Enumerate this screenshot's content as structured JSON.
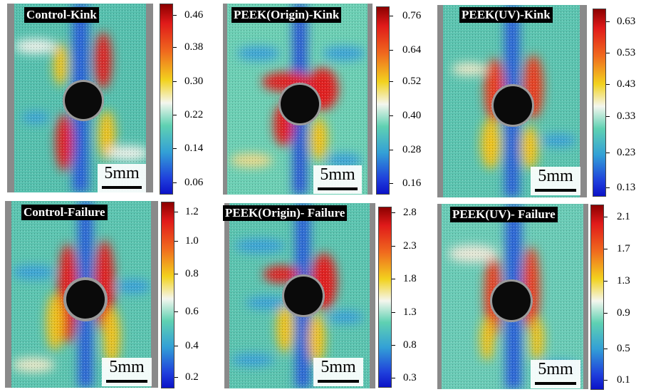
{
  "panels": [
    {
      "title": "Control-Kink",
      "scale": "5mm",
      "ticks": [
        "0.46",
        "0.38",
        "0.30",
        "0.22",
        "0.14",
        "0.06"
      ]
    },
    {
      "title": "PEEK(Origin)-Kink",
      "scale": "5mm",
      "ticks": [
        "0.76",
        "0.64",
        "0.52",
        "0.40",
        "0.28",
        "0.16"
      ]
    },
    {
      "title": "PEEK(UV)-Kink",
      "scale": "5mm",
      "ticks": [
        "0.63",
        "0.53",
        "0.43",
        "0.33",
        "0.23",
        "0.13"
      ]
    },
    {
      "title": "Control-Failure",
      "scale": "5mm",
      "ticks": [
        "1.2",
        "1.0",
        "0.8",
        "0.6",
        "0.4",
        "0.2"
      ]
    },
    {
      "title": "PEEK(Origin)- Failure",
      "scale": "5mm",
      "ticks": [
        "2.8",
        "2.3",
        "1.8",
        "1.3",
        "0.8",
        "0.3"
      ]
    },
    {
      "title": "PEEK(UV)- Failure",
      "scale": "5mm",
      "ticks": [
        "2.1",
        "1.7",
        "1.3",
        "0.9",
        "0.5",
        "0.1"
      ]
    }
  ],
  "colormap": [
    "#8c0000",
    "#e01a1a",
    "#f06a1e",
    "#f2d21e",
    "#f4f6ee",
    "#5fd1b2",
    "#33a0d6",
    "#1f3fdc",
    "#0c12c8"
  ],
  "colors": {
    "hole": "#0a0a0a",
    "speckle_edge": "#8a8a8a",
    "field": "#58c3b0"
  }
}
